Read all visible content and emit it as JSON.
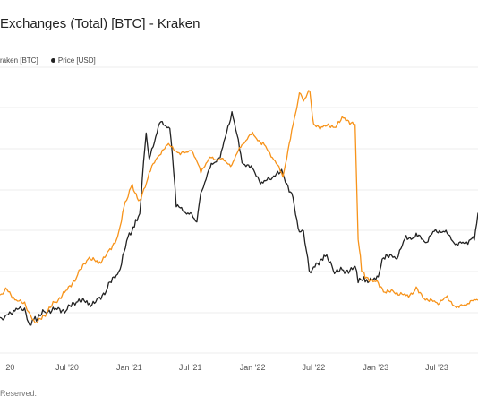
{
  "title": "Exchanges (Total) [BTC] - Kraken",
  "legend": {
    "series1_label": "raken [BTC]",
    "series2_label": "Price [USD]"
  },
  "footer": "Reserved.",
  "colors": {
    "balance": "#f7931a",
    "price": "#222222",
    "grid": "#ececec"
  },
  "chart_data": {
    "type": "line",
    "title": "Exchanges (Total) [BTC] - Kraken",
    "x_tick_labels": [
      "20",
      "Jul '20",
      "Jan '21",
      "Jul '21",
      "Jan '22",
      "Jul '22",
      "Jan '23",
      "Jul '23"
    ],
    "x_ticks": [
      "2020-01-01",
      "2020-07-01",
      "2021-01-01",
      "2021-07-01",
      "2022-01-01",
      "2022-07-01",
      "2023-01-01",
      "2023-07-01"
    ],
    "x_range": [
      "2019-12-15",
      "2023-10-31"
    ],
    "y_tick_labels": [],
    "grid": true,
    "legend_position": "top-left",
    "series": [
      {
        "name": "raken [BTC]",
        "color": "#f7931a",
        "axis": "left",
        "dates": [
          "2019-12-15",
          "2020-01-01",
          "2020-02-01",
          "2020-03-01",
          "2020-03-15",
          "2020-04-01",
          "2020-05-01",
          "2020-06-01",
          "2020-07-01",
          "2020-08-01",
          "2020-09-01",
          "2020-10-01",
          "2020-11-01",
          "2020-12-01",
          "2020-12-20",
          "2021-01-10",
          "2021-02-01",
          "2021-03-01",
          "2021-04-01",
          "2021-05-01",
          "2021-06-01",
          "2021-07-01",
          "2021-08-01",
          "2021-09-01",
          "2021-10-01",
          "2021-11-01",
          "2021-12-01",
          "2022-01-01",
          "2022-02-01",
          "2022-03-01",
          "2022-04-01",
          "2022-05-01",
          "2022-05-20",
          "2022-06-01",
          "2022-06-20",
          "2022-07-01",
          "2022-08-01",
          "2022-09-01",
          "2022-10-01",
          "2022-11-01",
          "2022-11-10",
          "2022-11-20",
          "2022-12-01",
          "2023-01-01",
          "2023-02-01",
          "2023-03-01",
          "2023-04-01",
          "2023-05-01",
          "2023-06-01",
          "2023-07-01",
          "2023-08-01",
          "2023-09-01",
          "2023-10-01",
          "2023-10-31"
        ],
        "values": [
          248,
          252,
          244,
          240,
          232,
          226,
          235,
          244,
          252,
          263,
          276,
          272,
          280,
          294,
          318,
          331,
          318,
          340,
          355,
          362,
          354,
          358,
          342,
          352,
          350,
          346,
          362,
          370,
          362,
          352,
          338,
          376,
          400,
          395,
          402,
          376,
          375,
          375,
          382,
          376,
          290,
          268,
          262,
          258,
          250,
          250,
          247,
          252,
          244,
          242,
          246,
          238,
          242,
          244
        ]
      },
      {
        "name": "Price [USD]",
        "color": "#222222",
        "axis": "right",
        "dates": [
          "2019-12-15",
          "2020-01-01",
          "2020-02-01",
          "2020-03-01",
          "2020-03-12",
          "2020-03-20",
          "2020-04-01",
          "2020-05-01",
          "2020-06-01",
          "2020-07-01",
          "2020-08-01",
          "2020-09-01",
          "2020-10-01",
          "2020-11-01",
          "2020-12-01",
          "2021-01-01",
          "2021-01-20",
          "2021-02-01",
          "2021-02-20",
          "2021-03-01",
          "2021-04-01",
          "2021-05-01",
          "2021-05-20",
          "2021-06-01",
          "2021-07-01",
          "2021-07-20",
          "2021-08-01",
          "2021-09-01",
          "2021-10-01",
          "2021-11-01",
          "2021-12-01",
          "2022-01-01",
          "2022-02-01",
          "2022-03-01",
          "2022-04-01",
          "2022-05-01",
          "2022-05-20",
          "2022-06-01",
          "2022-06-18",
          "2022-07-01",
          "2022-08-01",
          "2022-09-01",
          "2022-10-01",
          "2022-11-01",
          "2022-11-10",
          "2022-12-01",
          "2023-01-01",
          "2023-01-20",
          "2023-02-01",
          "2023-03-01",
          "2023-04-01",
          "2023-05-01",
          "2023-06-01",
          "2023-07-01",
          "2023-08-01",
          "2023-09-01",
          "2023-10-01",
          "2023-10-20",
          "2023-10-31"
        ],
        "values": [
          7200,
          7200,
          9500,
          8600,
          5000,
          6200,
          6700,
          9000,
          9400,
          9200,
          11700,
          10800,
          11500,
          15500,
          19000,
          29000,
          32000,
          34000,
          56000,
          49000,
          58000,
          57000,
          37000,
          36000,
          34000,
          32000,
          40000,
          47000,
          50000,
          61000,
          48000,
          46000,
          42000,
          44000,
          45000,
          38000,
          29000,
          30000,
          19500,
          20000,
          23500,
          19500,
          19300,
          20500,
          16500,
          17000,
          16800,
          21500,
          23200,
          22500,
          28000,
          28500,
          27000,
          30200,
          29200,
          26000,
          27000,
          28000,
          34500
        ]
      }
    ]
  }
}
